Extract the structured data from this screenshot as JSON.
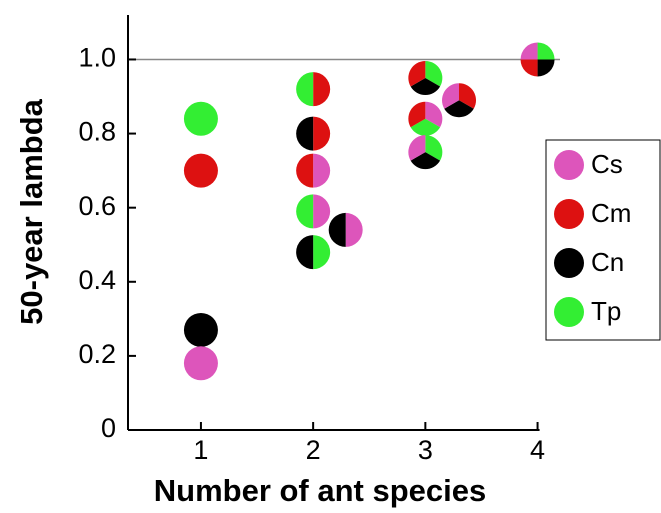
{
  "chart_data": {
    "type": "scatter",
    "x_label": "Number of ant species",
    "y_label": "50-year lambda",
    "xlim": [
      0.35,
      4.2
    ],
    "ylim": [
      0,
      1.12
    ],
    "xticks": [
      1,
      2,
      3,
      4
    ],
    "yticks": [
      0,
      0.2,
      0.4,
      0.6,
      0.8,
      {
        "value": 1,
        "label": "1.0"
      }
    ],
    "reference_line": 1,
    "series": [
      {
        "name": "Cs",
        "color": "#dd55bb"
      },
      {
        "name": "Cm",
        "color": "#dd1111"
      },
      {
        "name": "Cn",
        "color": "#000000"
      },
      {
        "name": "Tp",
        "color": "#33ee33"
      }
    ],
    "x": [
      1,
      1,
      1,
      1,
      2,
      2,
      2,
      2,
      2,
      2.29,
      3,
      3,
      3,
      3.3,
      4
    ],
    "y": [
      0.84,
      0.7,
      0.27,
      0.18,
      0.92,
      0.8,
      0.7,
      0.59,
      0.48,
      0.54,
      0.95,
      0.84,
      0.75,
      0.89,
      1
    ],
    "members": [
      [
        "Tp"
      ],
      [
        "Cm"
      ],
      [
        "Cn"
      ],
      [
        "Cs"
      ],
      [
        "Cm",
        "Tp"
      ],
      [
        "Cm",
        "Cn"
      ],
      [
        "Cs",
        "Cm"
      ],
      [
        "Cs",
        "Tp"
      ],
      [
        "Tp",
        "Cn"
      ],
      [
        "Cs",
        "Cn"
      ],
      [
        "Tp",
        "Cn",
        "Cm"
      ],
      [
        "Cs",
        "Tp",
        "Cm"
      ],
      [
        "Tp",
        "Cn",
        "Cs"
      ],
      [
        "Cm",
        "Cn",
        "Cs"
      ],
      [
        "Tp",
        "Cn",
        "Cm",
        "Cs"
      ]
    ]
  }
}
